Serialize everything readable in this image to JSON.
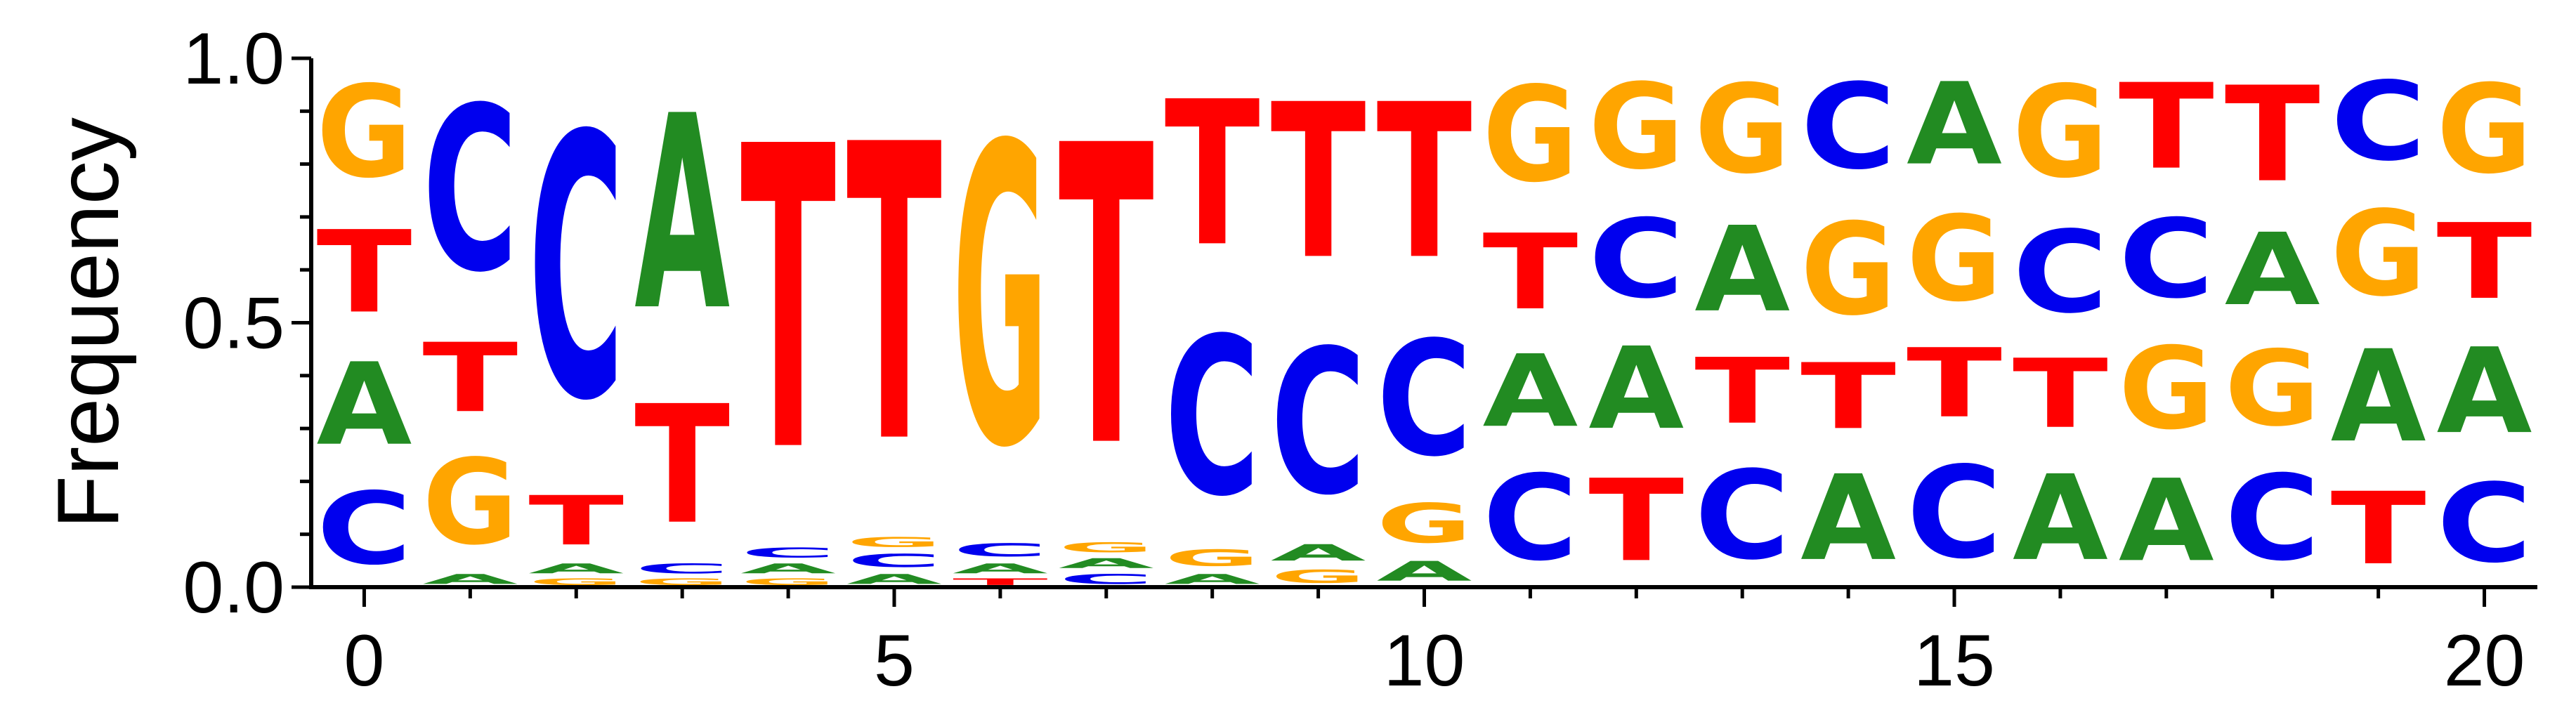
{
  "chart_data": {
    "type": "sequence-logo",
    "ylabel": "Frequency",
    "xlim": [
      -0.5,
      20.5
    ],
    "ylim": [
      0,
      1
    ],
    "x_ticks": [
      0,
      5,
      10,
      15,
      20
    ],
    "x_tick_labels": [
      "0",
      "5",
      "10",
      "15",
      "20"
    ],
    "y_ticks": [
      0,
      0.5,
      1
    ],
    "y_tick_labels": [
      "0.0",
      "0.5",
      "1.0"
    ],
    "y_minor_step": 0.1,
    "colors": {
      "A": "#228b22",
      "C": "#0000ee",
      "G": "#ffa500",
      "T": "#ff0000"
    },
    "positions": [
      {
        "pos": 0,
        "counts": {
          "C": 0.22,
          "A": 0.25,
          "T": 0.25,
          "G": 0.28
        }
      },
      {
        "pos": 1,
        "counts": {
          "A": 0.03,
          "G": 0.26,
          "T": 0.21,
          "C": 0.5
        }
      },
      {
        "pos": 2,
        "counts": {
          "G": 0.02,
          "A": 0.03,
          "T": 0.15,
          "C": 0.8
        }
      },
      {
        "pos": 3,
        "counts": {
          "G": 0.02,
          "C": 0.03,
          "T": 0.36,
          "A": 0.59
        }
      },
      {
        "pos": 4,
        "counts": {
          "G": 0.02,
          "A": 0.03,
          "C": 0.03,
          "T": 0.92
        }
      },
      {
        "pos": 5,
        "counts": {
          "A": 0.03,
          "C": 0.04,
          "G": 0.03,
          "T": 0.9
        }
      },
      {
        "pos": 6,
        "counts": {
          "T": 0.02,
          "A": 0.03,
          "C": 0.04,
          "G": 0.91
        }
      },
      {
        "pos": 7,
        "counts": {
          "C": 0.03,
          "A": 0.03,
          "G": 0.03,
          "T": 0.91
        }
      },
      {
        "pos": 8,
        "counts": {
          "A": 0.03,
          "G": 0.05,
          "C": 0.48,
          "T": 0.44
        }
      },
      {
        "pos": 9,
        "counts": {
          "G": 0.04,
          "A": 0.05,
          "C": 0.44,
          "T": 0.47
        }
      },
      {
        "pos": 10,
        "counts": {
          "A": 0.06,
          "G": 0.12,
          "C": 0.35,
          "T": 0.47
        }
      },
      {
        "pos": 11,
        "counts": {
          "C": 0.26,
          "A": 0.22,
          "T": 0.23,
          "G": 0.29
        }
      },
      {
        "pos": 12,
        "counts": {
          "T": 0.25,
          "A": 0.25,
          "C": 0.24,
          "G": 0.26
        }
      },
      {
        "pos": 13,
        "counts": {
          "C": 0.27,
          "T": 0.2,
          "A": 0.26,
          "G": 0.27
        }
      },
      {
        "pos": 14,
        "counts": {
          "A": 0.26,
          "T": 0.2,
          "G": 0.28,
          "C": 0.26
        }
      },
      {
        "pos": 15,
        "counts": {
          "C": 0.28,
          "T": 0.21,
          "G": 0.26,
          "A": 0.25
        }
      },
      {
        "pos": 16,
        "counts": {
          "A": 0.26,
          "T": 0.21,
          "C": 0.25,
          "T2": 0.0,
          "G": 0.28
        }
      },
      {
        "pos": 17,
        "counts": {
          "A": 0.25,
          "G": 0.25,
          "C": 0.24,
          "T": 0.26
        }
      },
      {
        "pos": 18,
        "counts": {
          "C": 0.26,
          "G": 0.23,
          "A": 0.22,
          "T": 0.29
        }
      },
      {
        "pos": 19,
        "counts": {
          "T": 0.22,
          "A": 0.28,
          "G": 0.26,
          "T2": 0.0,
          "C": 0.24
        }
      },
      {
        "pos": 20,
        "counts": {
          "C": 0.24,
          "A": 0.26,
          "T": 0.23,
          "G": 0.27
        }
      }
    ]
  }
}
